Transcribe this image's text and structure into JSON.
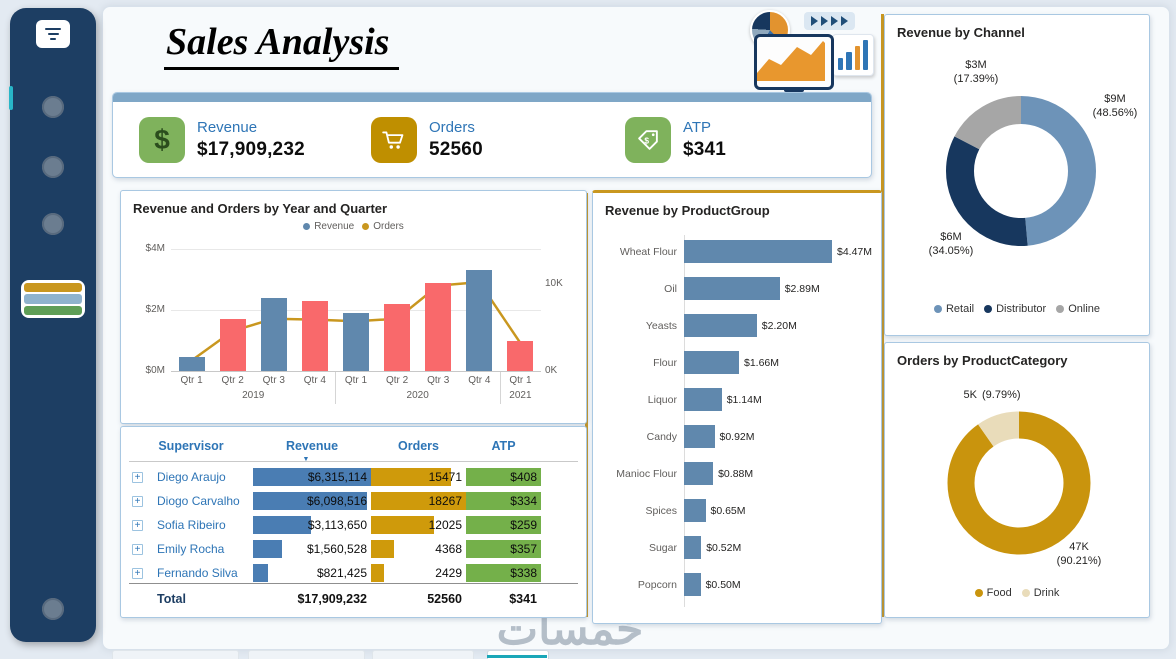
{
  "header": {
    "title": "Sales Analysis"
  },
  "kpis": [
    {
      "label": "Revenue",
      "value": "$17,909,232"
    },
    {
      "label": "Orders",
      "value": "52560"
    },
    {
      "label": "ATP",
      "value": "$341"
    }
  ],
  "chart_data": [
    {
      "name": "revenue_orders_by_quarter",
      "type": "bar",
      "title": "Revenue and Orders by Year and Quarter",
      "legend": [
        {
          "label": "Revenue",
          "color": "#6088ad"
        },
        {
          "label": "Orders",
          "color": "#c9971f"
        }
      ],
      "categories": [
        "Qtr 1",
        "Qtr 2",
        "Qtr 3",
        "Qtr 4",
        "Qtr 1",
        "Qtr 2",
        "Qtr 3",
        "Qtr 4",
        "Qtr 1"
      ],
      "year_groups": [
        {
          "label": "2019",
          "span": 4
        },
        {
          "label": "2020",
          "span": 4
        },
        {
          "label": "2021",
          "span": 1
        }
      ],
      "series": [
        {
          "name": "Revenue",
          "unit": "$M",
          "values": [
            0.45,
            1.7,
            2.4,
            2.3,
            1.9,
            2.2,
            2.9,
            3.3,
            1.0
          ],
          "colors": [
            "#6088ad",
            "#f9696b",
            "#6088ad",
            "#f9696b",
            "#6088ad",
            "#f9696b",
            "#f9696b",
            "#6088ad",
            "#f9696b"
          ]
        },
        {
          "name": "Orders",
          "unit": "K",
          "values": [
            1.2,
            4.6,
            6.0,
            5.9,
            5.7,
            6.0,
            9.8,
            10.2,
            3.2
          ],
          "color": "#c9971f"
        }
      ],
      "y_left": {
        "ticks": [
          "$4M",
          "$2M",
          "$0M"
        ],
        "max": 4
      },
      "y_right": {
        "ticks": [
          "10K",
          "0K"
        ],
        "max": 14
      },
      "grid": true,
      "legend_position": "top"
    },
    {
      "name": "revenue_by_productgroup",
      "type": "bar",
      "orientation": "horizontal",
      "title": "Revenue by ProductGroup",
      "categories": [
        "Wheat Flour",
        "Oil",
        "Yeasts",
        "Flour",
        "Liquor",
        "Candy",
        "Manioc Flour",
        "Spices",
        "Sugar",
        "Popcorn"
      ],
      "values": [
        4.47,
        2.89,
        2.2,
        1.66,
        1.14,
        0.92,
        0.88,
        0.65,
        0.52,
        0.5
      ],
      "value_labels": [
        "$4.47M",
        "$2.89M",
        "$2.20M",
        "$1.66M",
        "$1.14M",
        "$0.92M",
        "$0.88M",
        "$0.65M",
        "$0.52M",
        "$0.50M"
      ],
      "bar_color": "#6088ad",
      "xmax": 4.47
    },
    {
      "name": "revenue_by_channel",
      "type": "pie",
      "title": "Revenue by Channel",
      "slices": [
        {
          "name": "Retail",
          "value": "$9M",
          "pct": 48.56,
          "pct_label": "(48.56%)",
          "color": "#6d93b8"
        },
        {
          "name": "Distributor",
          "value": "$6M",
          "pct": 34.05,
          "pct_label": "(34.05%)",
          "color": "#17375e"
        },
        {
          "name": "Online",
          "value": "$3M",
          "pct": 17.39,
          "pct_label": "(17.39%)",
          "color": "#a6a6a6"
        }
      ],
      "legend_position": "bottom"
    },
    {
      "name": "orders_by_productcategory",
      "type": "pie",
      "title": "Orders by ProductCategory",
      "slices": [
        {
          "name": "Food",
          "value": "47K",
          "pct": 90.21,
          "pct_label": "(90.21%)",
          "color": "#c9940d"
        },
        {
          "name": "Drink",
          "value": "5K",
          "pct": 9.79,
          "pct_label": "(9.79%)",
          "color": "#e9dcba"
        }
      ],
      "legend_position": "bottom"
    }
  ],
  "supervisor_table": {
    "columns": [
      "Supervisor",
      "Revenue",
      "Orders",
      "ATP"
    ],
    "bar_colors": {
      "revenue": "#4a7db3",
      "orders": "#cf9a0b",
      "atp": "#74b04a"
    },
    "rows": [
      {
        "name": "Diego Araujo",
        "revenue": "$6,315,114",
        "revenue_pct": 100,
        "orders": "15471",
        "orders_pct": 84.7,
        "atp": "$408",
        "atp_pct": 100
      },
      {
        "name": "Diogo Carvalho",
        "revenue": "$6,098,516",
        "revenue_pct": 96.6,
        "orders": "18267",
        "orders_pct": 100,
        "atp": "$334",
        "atp_pct": 100
      },
      {
        "name": "Sofia Ribeiro",
        "revenue": "$3,113,650",
        "revenue_pct": 49.3,
        "orders": "12025",
        "orders_pct": 65.8,
        "atp": "$259",
        "atp_pct": 100
      },
      {
        "name": "Emily Rocha",
        "revenue": "$1,560,528",
        "revenue_pct": 24.7,
        "orders": "4368",
        "orders_pct": 23.9,
        "atp": "$357",
        "atp_pct": 100
      },
      {
        "name": "Fernando Silva",
        "revenue": "$821,425",
        "revenue_pct": 13.0,
        "orders": "2429",
        "orders_pct": 13.3,
        "atp": "$338",
        "atp_pct": 100
      }
    ],
    "total": {
      "name": "Total",
      "revenue": "$17,909,232",
      "orders": "52560",
      "atp": "$341"
    }
  },
  "watermark": "خمسات"
}
